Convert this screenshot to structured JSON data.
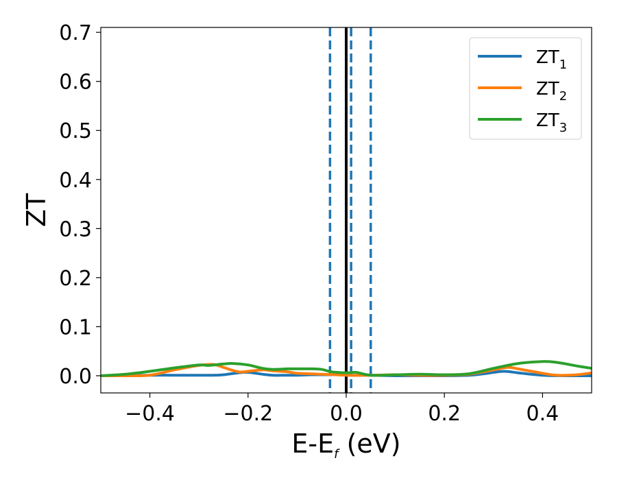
{
  "chart_data": {
    "type": "line",
    "title": "",
    "xlabel": "E-E",
    "xlabel_sub": "f",
    "xlabel_unit": " (eV)",
    "ylabel": "ZT",
    "xlim": [
      -0.5,
      0.5
    ],
    "ylim": [
      -0.035,
      0.71
    ],
    "x_ticks": [
      -0.4,
      -0.2,
      0.0,
      0.2,
      0.4
    ],
    "x_tick_labels": [
      "−0.4",
      "−0.2",
      "0.0",
      "0.2",
      "0.4"
    ],
    "y_ticks": [
      0.0,
      0.1,
      0.2,
      0.3,
      0.4,
      0.5,
      0.6,
      0.7
    ],
    "y_tick_labels": [
      "0.0",
      "0.1",
      "0.2",
      "0.3",
      "0.4",
      "0.5",
      "0.6",
      "0.7"
    ],
    "grid": false,
    "legend_position": "top-right",
    "vertical_lines": [
      {
        "x": 0.0,
        "style": "solid",
        "color": "#000000"
      },
      {
        "x": -0.033,
        "style": "dashed",
        "color": "#1f77b4"
      },
      {
        "x": 0.01,
        "style": "dashed",
        "color": "#1f77b4"
      },
      {
        "x": 0.05,
        "style": "dashed",
        "color": "#1f77b4"
      }
    ],
    "series": [
      {
        "name": "ZT",
        "name_sub": "1",
        "color": "#1f77b4",
        "x": [
          -0.5,
          -0.45,
          -0.4,
          -0.35,
          -0.3,
          -0.27,
          -0.25,
          -0.22,
          -0.2,
          -0.17,
          -0.15,
          -0.12,
          -0.1,
          -0.07,
          -0.05,
          -0.02,
          0.0,
          0.05,
          0.1,
          0.15,
          0.2,
          0.25,
          0.28,
          0.32,
          0.35,
          0.4,
          0.45,
          0.5
        ],
        "y": [
          0.0,
          0.0,
          0.001,
          0.001,
          0.001,
          0.001,
          0.002,
          0.006,
          0.007,
          0.003,
          0.001,
          0.001,
          0.001,
          0.002,
          0.002,
          0.002,
          0.001,
          0.001,
          0.0,
          0.0,
          0.0,
          0.001,
          0.004,
          0.009,
          0.006,
          0.001,
          0.0,
          0.0
        ]
      },
      {
        "name": "ZT",
        "name_sub": "2",
        "color": "#ff7f0e",
        "x": [
          -0.5,
          -0.45,
          -0.4,
          -0.35,
          -0.3,
          -0.27,
          -0.25,
          -0.22,
          -0.2,
          -0.17,
          -0.15,
          -0.12,
          -0.1,
          -0.07,
          -0.05,
          -0.02,
          0.0,
          0.05,
          0.1,
          0.15,
          0.2,
          0.25,
          0.3,
          0.33,
          0.35,
          0.4,
          0.43,
          0.47,
          0.5
        ],
        "y": [
          0.0,
          0.0,
          0.001,
          0.012,
          0.021,
          0.023,
          0.017,
          0.008,
          0.009,
          0.012,
          0.01,
          0.008,
          0.005,
          0.004,
          0.003,
          0.002,
          0.001,
          0.001,
          0.002,
          0.001,
          0.001,
          0.003,
          0.012,
          0.017,
          0.014,
          0.005,
          0.001,
          0.002,
          0.006
        ]
      },
      {
        "name": "ZT",
        "name_sub": "3",
        "color": "#2ca02c",
        "x": [
          -0.5,
          -0.45,
          -0.4,
          -0.35,
          -0.3,
          -0.28,
          -0.25,
          -0.23,
          -0.2,
          -0.17,
          -0.15,
          -0.12,
          -0.1,
          -0.07,
          -0.05,
          -0.03,
          0.0,
          0.02,
          0.05,
          0.1,
          0.15,
          0.2,
          0.25,
          0.3,
          0.35,
          0.4,
          0.43,
          0.47,
          0.5
        ],
        "y": [
          0.0,
          0.003,
          0.009,
          0.016,
          0.022,
          0.021,
          0.024,
          0.025,
          0.022,
          0.015,
          0.013,
          0.014,
          0.014,
          0.014,
          0.013,
          0.008,
          0.006,
          0.007,
          0.001,
          0.002,
          0.003,
          0.002,
          0.004,
          0.015,
          0.025,
          0.029,
          0.027,
          0.02,
          0.015
        ]
      }
    ]
  }
}
